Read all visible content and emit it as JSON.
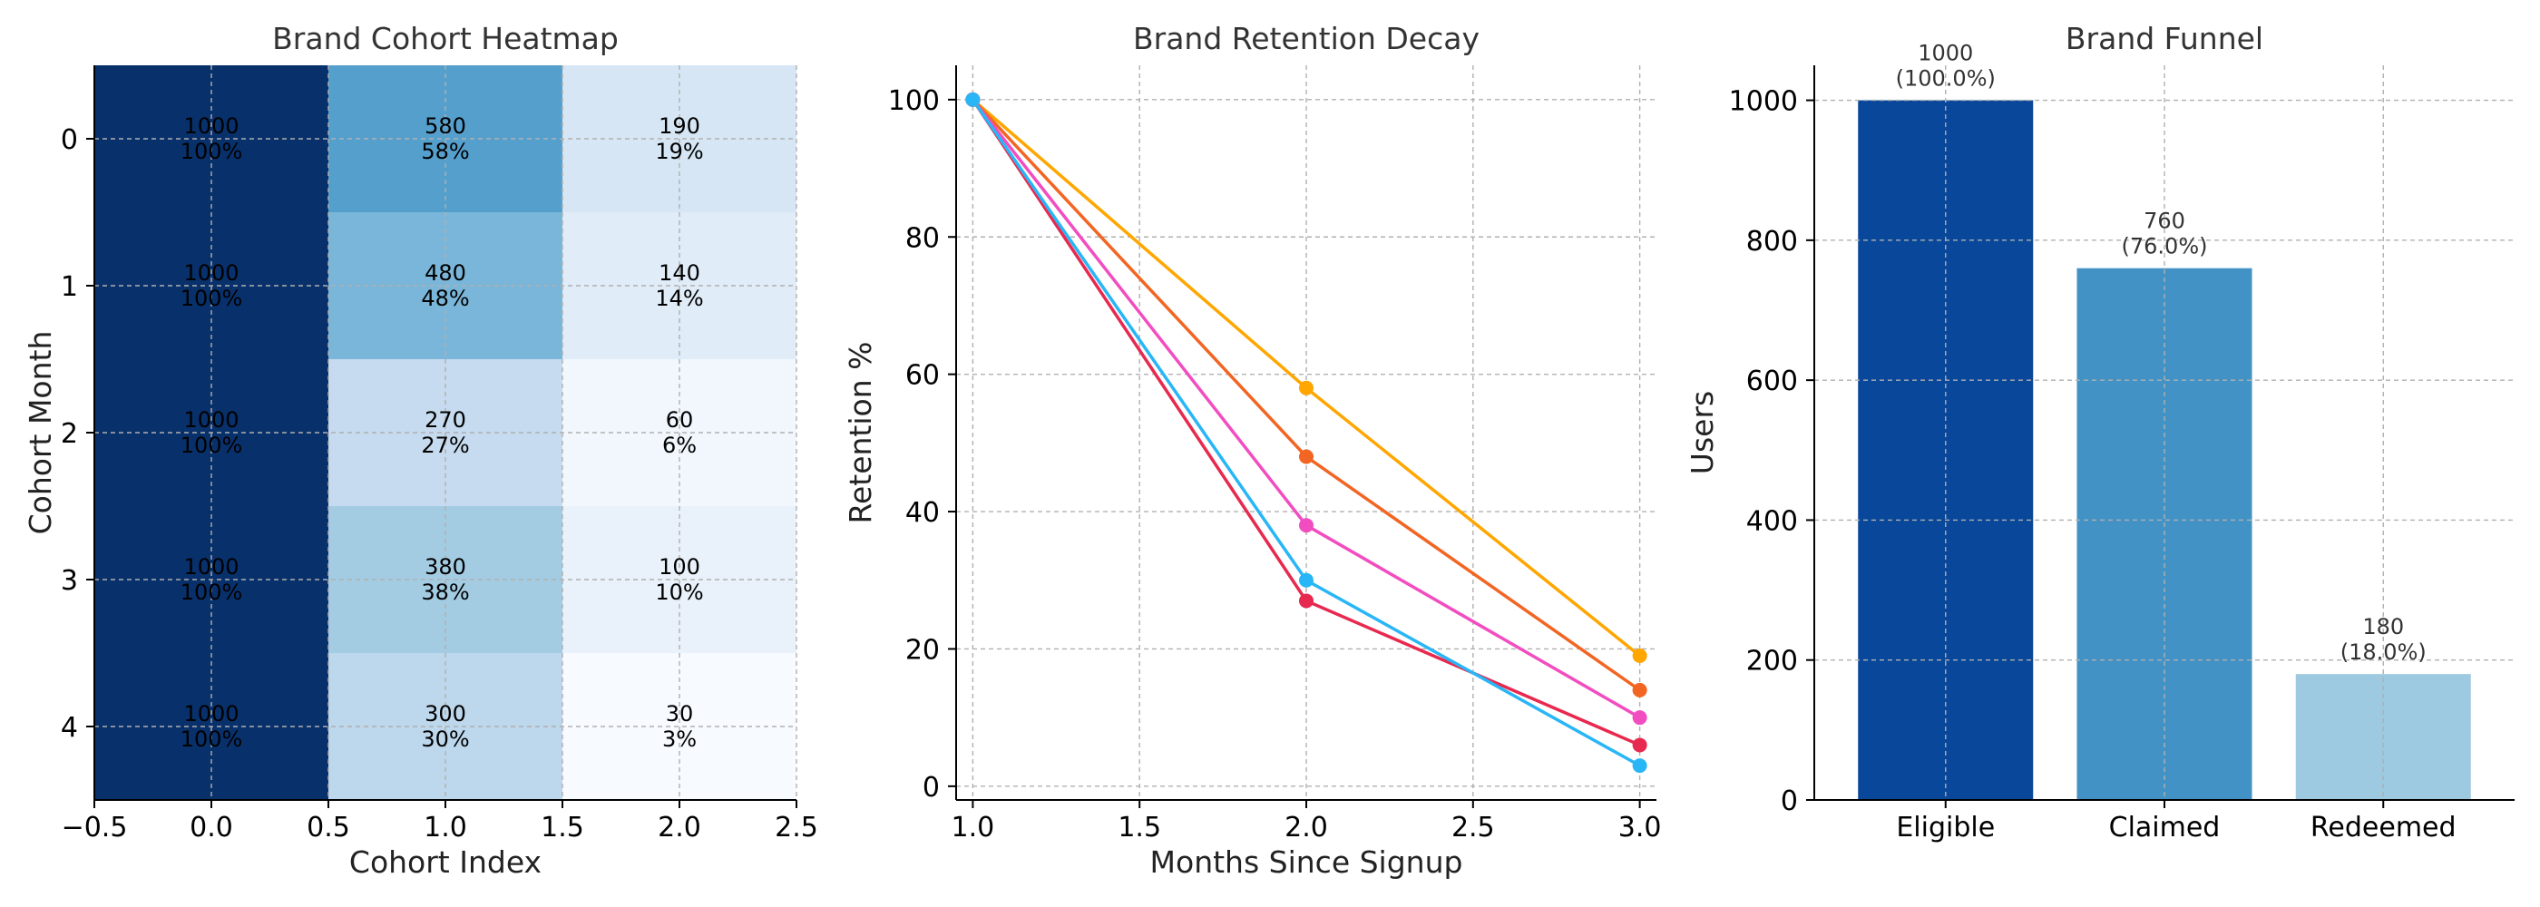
{
  "chart_data": [
    {
      "type": "heatmap",
      "title": "Brand Cohort Heatmap",
      "xlabel": "Cohort Index",
      "ylabel": "Cohort Month",
      "xlim": [
        -0.5,
        2.5
      ],
      "ylim": [
        4.5,
        -0.5
      ],
      "x_ticks": [
        "−0.5",
        "0.0",
        "0.5",
        "1.0",
        "1.5",
        "2.0",
        "2.5"
      ],
      "y_ticks": [
        "0",
        "1",
        "2",
        "3",
        "4"
      ],
      "grid": true,
      "colormap": "Blues",
      "values": [
        [
          1000,
          580,
          190
        ],
        [
          1000,
          480,
          140
        ],
        [
          1000,
          270,
          60
        ],
        [
          1000,
          380,
          100
        ],
        [
          1000,
          300,
          30
        ]
      ],
      "cell_labels": [
        [
          [
            "1000",
            "100%"
          ],
          [
            "580",
            "58%"
          ],
          [
            "190",
            "19%"
          ]
        ],
        [
          [
            "1000",
            "100%"
          ],
          [
            "480",
            "48%"
          ],
          [
            "140",
            "14%"
          ]
        ],
        [
          [
            "1000",
            "100%"
          ],
          [
            "270",
            "27%"
          ],
          [
            "60",
            "6%"
          ]
        ],
        [
          [
            "1000",
            "100%"
          ],
          [
            "380",
            "38%"
          ],
          [
            "100",
            "10%"
          ]
        ],
        [
          [
            "1000",
            "100%"
          ],
          [
            "300",
            "30%"
          ],
          [
            "30",
            "3%"
          ]
        ]
      ]
    },
    {
      "type": "line",
      "title": "Brand Retention Decay",
      "xlabel": "Months Since Signup",
      "ylabel": "Retention %",
      "xlim": [
        0.95,
        3.05
      ],
      "ylim": [
        -2,
        105
      ],
      "x_ticks": [
        "1.0",
        "1.5",
        "2.0",
        "2.5",
        "3.0"
      ],
      "y_ticks": [
        "0",
        "20",
        "40",
        "60",
        "80",
        "100"
      ],
      "grid": true,
      "x": [
        1,
        2,
        3
      ],
      "series": [
        {
          "values": [
            100,
            58,
            19
          ],
          "color": "#ffa600"
        },
        {
          "values": [
            100,
            48,
            14
          ],
          "color": "#f26522"
        },
        {
          "values": [
            100,
            27,
            6
          ],
          "color": "#e8294f"
        },
        {
          "values": [
            100,
            38,
            10
          ],
          "color": "#f24dc0"
        },
        {
          "values": [
            100,
            30,
            3
          ],
          "color": "#29b6f6"
        }
      ]
    },
    {
      "type": "bar",
      "title": "Brand Funnel",
      "xlabel": "",
      "ylabel": "Users",
      "ylim": [
        0,
        1050
      ],
      "y_ticks": [
        "0",
        "200",
        "400",
        "600",
        "800",
        "1000"
      ],
      "grid": true,
      "categories": [
        "Eligible",
        "Claimed",
        "Redeemed"
      ],
      "values": [
        1000,
        760,
        180
      ],
      "colors": [
        "#08479a",
        "#4292c6",
        "#9ecae1"
      ],
      "data_labels": [
        [
          "1000",
          "(100.0%)"
        ],
        [
          "760",
          "(76.0%)"
        ],
        [
          "180",
          "(18.0%)"
        ]
      ]
    }
  ]
}
